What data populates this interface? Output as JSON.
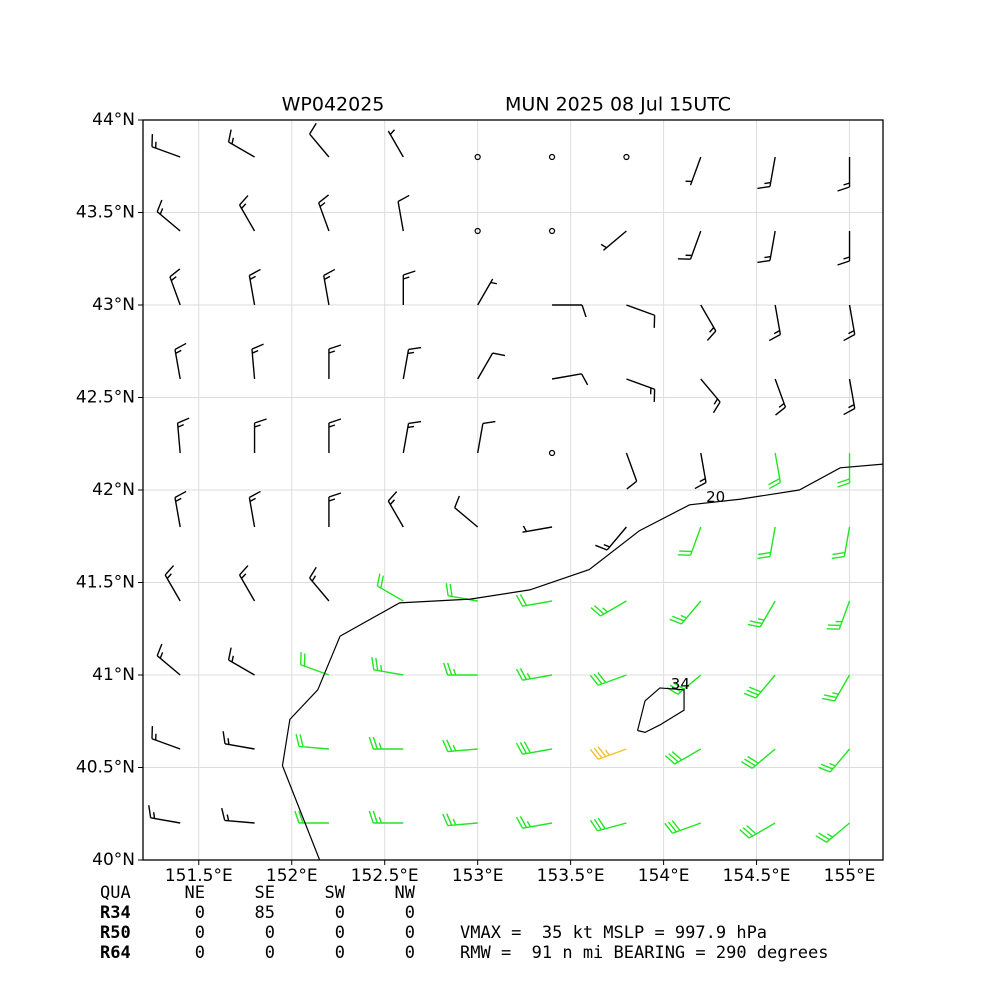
{
  "chart_data": {
    "type": "wind-barb",
    "title": "WP042025",
    "subtitle": "MUN 2025 08 Jul 15UTC",
    "xlim": [
      151.2,
      155.18
    ],
    "ylim": [
      40,
      44
    ],
    "xticks": [
      {
        "value": 151.5,
        "label": "151.5°E"
      },
      {
        "value": 152,
        "label": "152°E"
      },
      {
        "value": 152.5,
        "label": "152.5°E"
      },
      {
        "value": 153,
        "label": "153°E"
      },
      {
        "value": 153.5,
        "label": "153.5°E"
      },
      {
        "value": 154,
        "label": "154°E"
      },
      {
        "value": 154.5,
        "label": "154.5°E"
      },
      {
        "value": 155,
        "label": "155°E"
      }
    ],
    "yticks": [
      {
        "value": 40,
        "label": "40°N"
      },
      {
        "value": 40.5,
        "label": "40.5°N"
      },
      {
        "value": 41,
        "label": "41°N"
      },
      {
        "value": 41.5,
        "label": "41.5°N"
      },
      {
        "value": 42,
        "label": "42°N"
      },
      {
        "value": 42.5,
        "label": "42.5°N"
      },
      {
        "value": 43,
        "label": "43°N"
      },
      {
        "value": 43.5,
        "label": "43.5°N"
      },
      {
        "value": 44,
        "label": "44°N"
      }
    ],
    "grid": true,
    "barb_colors": [
      {
        "min": 0,
        "color": "#000000"
      },
      {
        "min": 20,
        "color": "#22e622"
      },
      {
        "min": 34,
        "color": "#f5c02a"
      }
    ],
    "wind": {
      "lon": [
        151.4,
        151.8,
        152.2,
        152.6,
        153.0,
        153.4,
        153.8,
        154.2,
        154.6,
        155.0
      ],
      "lat": [
        43.8,
        43.4,
        43.0,
        42.6,
        42.2,
        41.8,
        41.4,
        41.0,
        40.6,
        40.2
      ],
      "speed": [
        [
          15,
          15,
          10,
          5,
          0,
          0,
          0,
          5,
          15,
          15
        ],
        [
          15,
          15,
          15,
          10,
          0,
          0,
          5,
          15,
          15,
          15
        ],
        [
          15,
          15,
          15,
          15,
          5,
          10,
          10,
          15,
          15,
          15
        ],
        [
          15,
          15,
          15,
          15,
          10,
          10,
          15,
          15,
          15,
          15
        ],
        [
          15,
          15,
          15,
          15,
          10,
          0,
          10,
          15,
          20,
          20
        ],
        [
          15,
          15,
          15,
          15,
          10,
          5,
          15,
          20,
          20,
          20
        ],
        [
          15,
          15,
          15,
          20,
          20,
          20,
          25,
          25,
          25,
          25
        ],
        [
          15,
          15,
          20,
          25,
          25,
          25,
          30,
          30,
          30,
          25
        ],
        [
          15,
          15,
          20,
          25,
          25,
          30,
          35,
          30,
          30,
          25
        ],
        [
          15,
          15,
          20,
          25,
          25,
          25,
          30,
          30,
          30,
          25
        ]
      ],
      "direction": [
        [
          290,
          300,
          320,
          330,
          0,
          0,
          0,
          200,
          190,
          180
        ],
        [
          310,
          330,
          340,
          350,
          0,
          0,
          230,
          200,
          190,
          180
        ],
        [
          340,
          350,
          350,
          0,
          30,
          90,
          110,
          150,
          170,
          170
        ],
        [
          350,
          355,
          0,
          10,
          30,
          80,
          110,
          140,
          160,
          170
        ],
        [
          355,
          0,
          0,
          10,
          10,
          0,
          160,
          170,
          170,
          180
        ],
        [
          350,
          350,
          0,
          330,
          310,
          260,
          220,
          200,
          190,
          190
        ],
        [
          330,
          330,
          320,
          300,
          280,
          260,
          240,
          220,
          210,
          200
        ],
        [
          310,
          300,
          290,
          280,
          270,
          260,
          250,
          230,
          220,
          210
        ],
        [
          290,
          280,
          275,
          270,
          265,
          260,
          250,
          240,
          230,
          220
        ],
        [
          280,
          275,
          270,
          270,
          265,
          260,
          255,
          250,
          240,
          230
        ]
      ]
    },
    "contours": [
      {
        "level": 20,
        "label_at": [
          154.28,
          41.96
        ],
        "points": [
          [
            152.15,
            40.0
          ],
          [
            151.95,
            40.51
          ],
          [
            151.99,
            40.76
          ],
          [
            152.14,
            40.92
          ],
          [
            152.26,
            41.21
          ],
          [
            152.58,
            41.39
          ],
          [
            152.96,
            41.41
          ],
          [
            153.28,
            41.46
          ],
          [
            153.6,
            41.57
          ],
          [
            153.87,
            41.78
          ],
          [
            154.14,
            41.92
          ],
          [
            154.41,
            41.95
          ],
          [
            154.73,
            42.0
          ],
          [
            154.95,
            42.12
          ],
          [
            155.18,
            42.14
          ]
        ]
      },
      {
        "level": 34,
        "label_at": [
          154.09,
          40.95
        ],
        "points": [
          [
            153.86,
            40.7
          ],
          [
            153.9,
            40.86
          ],
          [
            153.98,
            40.93
          ],
          [
            154.11,
            40.92
          ],
          [
            154.11,
            40.81
          ],
          [
            153.98,
            40.73
          ],
          [
            153.9,
            40.69
          ],
          [
            153.86,
            40.7
          ]
        ]
      }
    ]
  },
  "table": {
    "header": [
      "QUA",
      "NE",
      "SE",
      "SW",
      "NW"
    ],
    "rows": [
      [
        "R34",
        0,
        85,
        0,
        0
      ],
      [
        "R50",
        0,
        0,
        0,
        0
      ],
      [
        "R64",
        0,
        0,
        0,
        0
      ]
    ]
  },
  "info": [
    "VMAX =  35 kt MSLP = 997.9 hPa",
    "RMW =  91 n mi BEARING = 290 degrees"
  ]
}
